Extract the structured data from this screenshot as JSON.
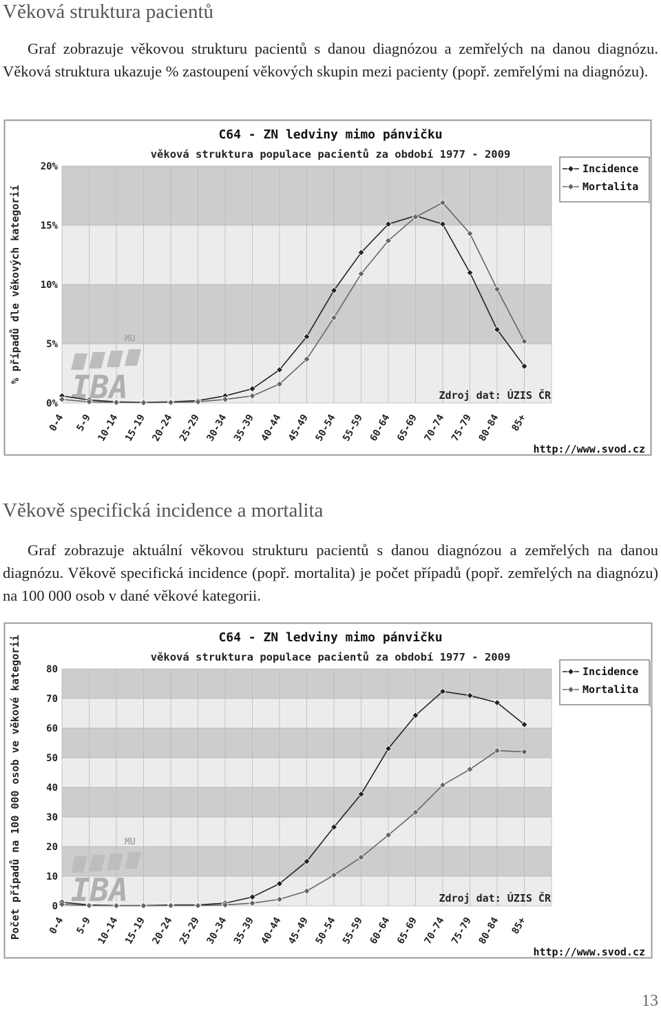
{
  "sections": [
    {
      "title": "Věková struktura pacientů",
      "text": "Graf zobrazuje věkovou strukturu pacientů s danou diagnózou a zemřelých na danou diagnózu. Věková struktura ukazuje % zastoupení věkových skupin mezi pa­cienty (popř. zemřelými na diagnózu)."
    },
    {
      "title": "Věkově specifická incidence a mortalita",
      "text": "Graf zobrazuje aktuální věkovou strukturu pacientů s danou diagnózou a zemře­lých na danou diagnózu. Věkově specifická incidence (popř. mortalita) je počet pří­padů (popř. zemřelých na diagnózu) na 100 000 osob v dané věkové kategorii."
    }
  ],
  "page_number": "13",
  "colors": {
    "incidence": "#222222",
    "mortalita": "#666666",
    "band": "#cdcdcd",
    "plot_bg": "#ececec",
    "frame": "#9a9a9a"
  },
  "chart_data": [
    {
      "type": "line",
      "title": "C64 - ZN ledviny mimo pánvičku",
      "subtitle": "věková struktura populace pacientů za období 1977 - 2009",
      "ylabel": "% případů dle věkových kategorií",
      "xlabel": "",
      "source": "Zdroj dat: ÚZIS ČR",
      "url": "http://www.svod.cz",
      "logo": {
        "small": "MU",
        "big": "IBA"
      },
      "categories": [
        "0-4",
        "5-9",
        "10-14",
        "15-19",
        "20-24",
        "25-29",
        "30-34",
        "35-39",
        "40-44",
        "45-49",
        "50-54",
        "55-59",
        "60-64",
        "65-69",
        "70-74",
        "75-79",
        "80-84",
        "85+"
      ],
      "yticks": [
        0,
        5,
        10,
        15,
        20
      ],
      "ytick_labels": [
        "0%",
        "5%",
        "10%",
        "15%",
        "20%"
      ],
      "ylim": [
        0,
        20
      ],
      "grid": true,
      "legend": "top-right",
      "series": [
        {
          "name": "Incidence",
          "values": [
            0.6,
            0.25,
            0.1,
            0.05,
            0.1,
            0.2,
            0.6,
            1.2,
            2.8,
            5.6,
            9.5,
            12.7,
            15.1,
            15.8,
            15.1,
            11.0,
            6.2,
            3.1
          ]
        },
        {
          "name": "Mortalita",
          "values": [
            0.3,
            0.1,
            0.05,
            0.03,
            0.05,
            0.1,
            0.3,
            0.6,
            1.6,
            3.7,
            7.2,
            10.9,
            13.7,
            15.7,
            16.9,
            14.3,
            9.6,
            5.2
          ]
        }
      ]
    },
    {
      "type": "line",
      "title": "C64 - ZN ledviny mimo pánvičku",
      "subtitle": "věková struktura populace pacientů za období 1977 - 2009",
      "ylabel": "Počet případů na 100 000 osob ve věkové kategorii",
      "xlabel": "",
      "source": "Zdroj dat: ÚZIS ČR",
      "url": "http://www.svod.cz",
      "logo": {
        "small": "MU",
        "big": "IBA"
      },
      "categories": [
        "0-4",
        "5-9",
        "10-14",
        "15-19",
        "20-24",
        "25-29",
        "30-34",
        "35-39",
        "40-44",
        "45-49",
        "50-54",
        "55-59",
        "60-64",
        "65-69",
        "70-74",
        "75-79",
        "80-84",
        "85+"
      ],
      "yticks": [
        0,
        10,
        20,
        30,
        40,
        50,
        60,
        70,
        80
      ],
      "ytick_labels": [
        "0",
        "10",
        "20",
        "30",
        "40",
        "50",
        "60",
        "70",
        "80"
      ],
      "ylim": [
        0,
        80
      ],
      "grid": true,
      "legend": "top-right",
      "series": [
        {
          "name": "Incidence",
          "values": [
            1.2,
            0.3,
            0.1,
            0.1,
            0.3,
            0.3,
            0.9,
            3.0,
            7.5,
            15.0,
            26.6,
            37.7,
            53.1,
            64.3,
            72.4,
            71.0,
            68.6,
            61.2
          ]
        },
        {
          "name": "Mortalita",
          "values": [
            0.5,
            0.1,
            0.05,
            0.05,
            0.1,
            0.1,
            0.3,
            0.9,
            2.2,
            5.0,
            10.4,
            16.4,
            23.9,
            31.6,
            40.8,
            46.1,
            52.4,
            52.0
          ]
        }
      ]
    }
  ]
}
